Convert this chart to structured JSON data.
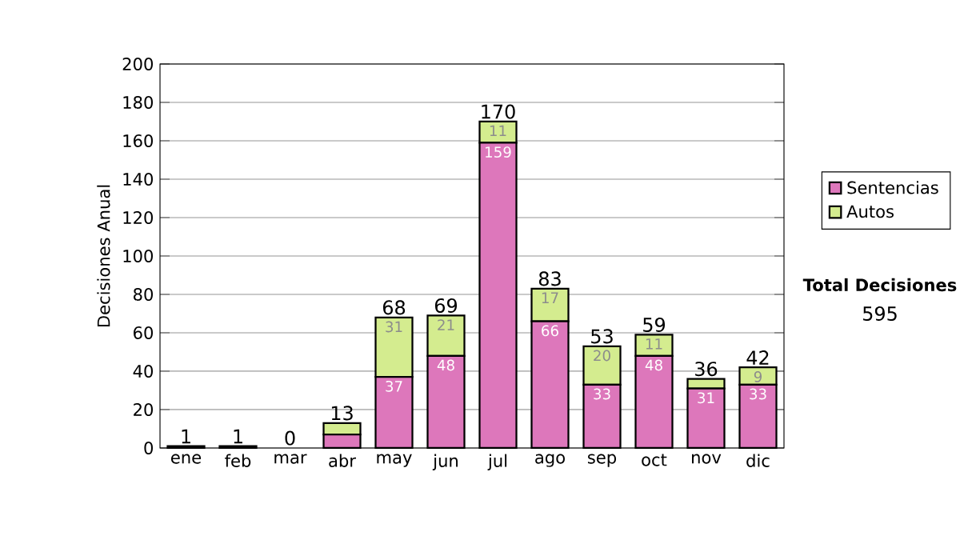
{
  "chart_data": {
    "type": "bar",
    "stacked": true,
    "ylabel": "Decisiones Anual",
    "categories": [
      "ene",
      "feb",
      "mar",
      "abr",
      "may",
      "jun",
      "jul",
      "ago",
      "sep",
      "oct",
      "nov",
      "dic"
    ],
    "series": [
      {
        "name": "Sentencias",
        "color": "#dd77bb",
        "values": [
          1,
          1,
          0,
          7,
          37,
          48,
          159,
          66,
          33,
          48,
          31,
          33
        ],
        "value_labels": [
          null,
          null,
          null,
          null,
          "37",
          "48",
          "159",
          "66",
          "33",
          "48",
          "31",
          "33"
        ]
      },
      {
        "name": "Autos",
        "color": "#d4ec8f",
        "values": [
          0,
          0,
          0,
          6,
          31,
          21,
          11,
          17,
          20,
          11,
          5,
          9
        ],
        "value_labels": [
          null,
          null,
          null,
          null,
          "31",
          "21",
          "11",
          "17",
          "20",
          "11",
          null,
          "9"
        ]
      }
    ],
    "totals": [
      "1",
      "1",
      "0",
      "13",
      "68",
      "69",
      "170",
      "83",
      "53",
      "59",
      "36",
      "42"
    ],
    "ylim": [
      0,
      200
    ],
    "yticks": [
      0,
      20,
      40,
      60,
      80,
      100,
      120,
      140,
      160,
      180,
      200
    ],
    "grid": "y",
    "legend": "right",
    "annotations": [
      "Total Decisiones",
      "595"
    ]
  }
}
